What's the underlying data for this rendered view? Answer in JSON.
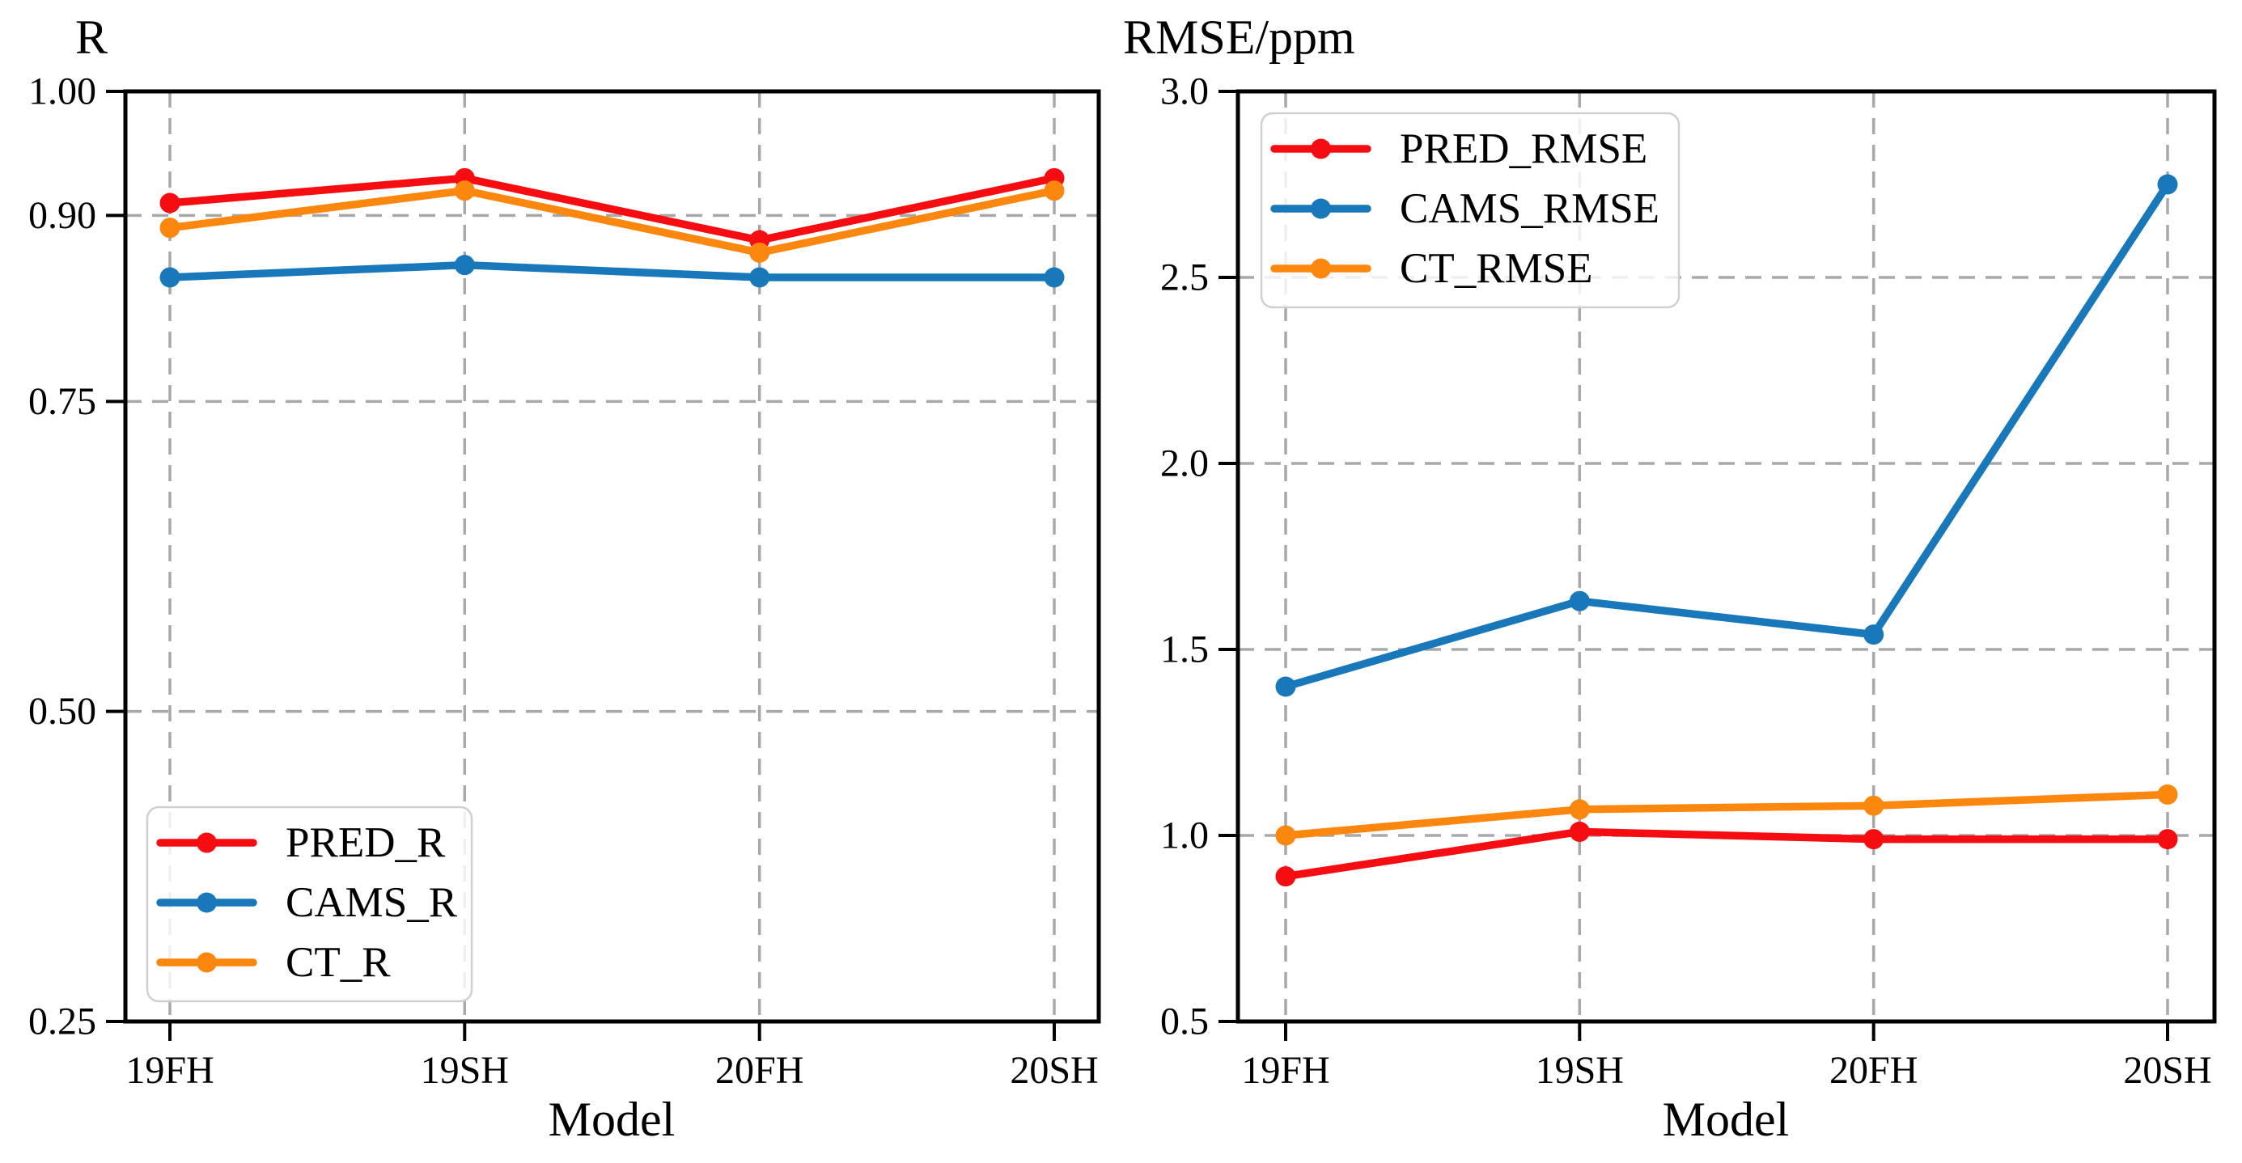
{
  "figure": {
    "background": "#ffffff"
  },
  "colors": {
    "grid": "#a8a8a8",
    "axis": "#000000",
    "legend_border": "#cfcfcf",
    "red": "#f50d12",
    "blue": "#1878ba",
    "orange": "#fc870f"
  },
  "chart_data": [
    {
      "type": "line",
      "title": "R",
      "xlabel": "Model",
      "categories": [
        "19FH",
        "19SH",
        "20FH",
        "20SH"
      ],
      "ylim": [
        0.25,
        1.0
      ],
      "yticks": [
        1.0,
        0.9,
        0.75,
        0.5,
        0.25
      ],
      "ytick_labels": [
        "1.00",
        "0.90",
        "0.75",
        "0.50",
        "0.25"
      ],
      "grid_yticks": [
        0.9,
        0.75,
        0.5
      ],
      "grid": "dashed",
      "legend_position": "lower-left",
      "series": [
        {
          "name": "PRED_R",
          "color": "#f50d12",
          "values": [
            0.91,
            0.93,
            0.88,
            0.93
          ]
        },
        {
          "name": "CAMS_R",
          "color": "#1878ba",
          "values": [
            0.85,
            0.86,
            0.85,
            0.85
          ]
        },
        {
          "name": "CT_R",
          "color": "#fc870f",
          "values": [
            0.89,
            0.92,
            0.87,
            0.92
          ]
        }
      ]
    },
    {
      "type": "line",
      "title": "RMSE/ppm",
      "xlabel": "Model",
      "categories": [
        "19FH",
        "19SH",
        "20FH",
        "20SH"
      ],
      "ylim": [
        0.5,
        3.0
      ],
      "yticks": [
        3.0,
        2.5,
        2.0,
        1.5,
        1.0,
        0.5
      ],
      "ytick_labels": [
        "3.0",
        "2.5",
        "2.0",
        "1.5",
        "1.0",
        "0.5"
      ],
      "grid_yticks": [
        2.5,
        2.0,
        1.5,
        1.0
      ],
      "grid": "dashed",
      "legend_position": "upper-left",
      "series": [
        {
          "name": "PRED_RMSE",
          "color": "#f50d12",
          "values": [
            0.89,
            1.01,
            0.99,
            0.99
          ]
        },
        {
          "name": "CAMS_RMSE",
          "color": "#1878ba",
          "values": [
            1.4,
            1.63,
            1.54,
            2.75
          ]
        },
        {
          "name": "CT_RMSE",
          "color": "#fc870f",
          "values": [
            1.0,
            1.07,
            1.08,
            1.11
          ]
        }
      ]
    }
  ]
}
